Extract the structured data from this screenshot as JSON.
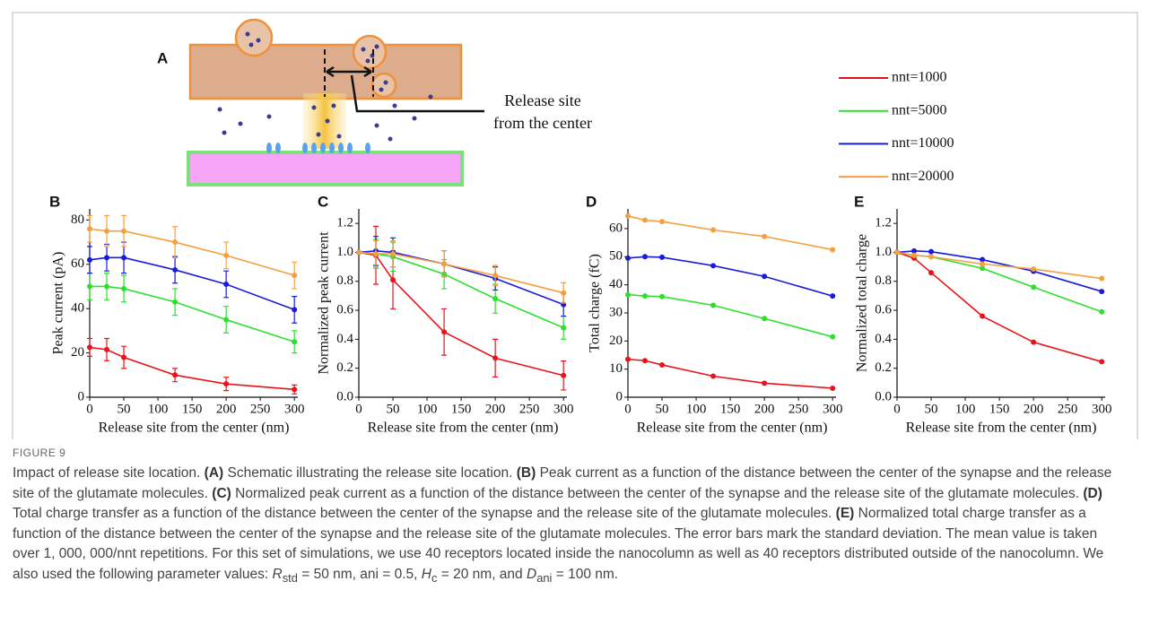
{
  "figure_label": "FIGURE 9",
  "schematic": {
    "panel": "A",
    "label_lines": [
      "Release site",
      "from the center"
    ]
  },
  "caption": {
    "parts": [
      "Impact of release site location. ",
      "(A)",
      " Schematic illustrating the release site location. ",
      "(B)",
      " Peak current as a function of the distance between the center of the synapse and the release site of the glutamate molecules. ",
      "(C)",
      " Normalized peak current as a function of the distance between the center of the synapse and the release site of the glutamate molecules. ",
      "(D)",
      " Total charge transfer as a function of the distance between the center of the synapse and the release site of the glutamate molecules. ",
      "(E)",
      " Normalized total charge transfer as a function of the distance between the center of the synapse and the release site of the glutamate molecules. The error bars mark the standard deviation. The mean value is taken over 1, 000, 000/nnt repetitions. For this set of simulations, we use 40 receptors located inside the nanocolumn as well as 40 receptors distributed outside of the nanocolumn. We also used the following parameter values: ",
      "R",
      "std",
      " = 50 nm, ani = 0.5, ",
      "H",
      "c",
      " = 20 nm, and ",
      "D",
      "ani",
      " = 100 nm."
    ]
  },
  "chart_data": [
    {
      "type": "line",
      "panel": "B",
      "ylabel": "Peak current (pA)",
      "xlabel": "Release site from the center (nm)",
      "x": [
        0,
        25,
        50,
        125,
        200,
        300
      ],
      "xlim": [
        0,
        305
      ],
      "xticks": [
        0,
        50,
        100,
        150,
        200,
        250,
        300
      ],
      "ylim": [
        0,
        85
      ],
      "yticks": [
        0,
        20,
        40,
        60,
        80
      ],
      "series": [
        {
          "name": "nnt=1000",
          "color": "#e8141b",
          "values": [
            22.5,
            21.5,
            18,
            10,
            6,
            3.5
          ],
          "errors": [
            4,
            5,
            5,
            3,
            3,
            2
          ]
        },
        {
          "name": "nnt=5000",
          "color": "#2ee02e",
          "values": [
            50,
            50,
            49,
            43,
            35,
            25
          ],
          "errors": [
            6,
            6,
            6,
            6,
            6,
            5
          ]
        },
        {
          "name": "nnt=10000",
          "color": "#1a1adb",
          "values": [
            62,
            63,
            63,
            57.5,
            51,
            39.5
          ],
          "errors": [
            6,
            6,
            7,
            6,
            6,
            6
          ]
        },
        {
          "name": "nnt=20000",
          "color": "#f5a040",
          "values": [
            76,
            75,
            75,
            70,
            64,
            55
          ],
          "errors": [
            6,
            7,
            7,
            7,
            6,
            6
          ]
        }
      ]
    },
    {
      "type": "line",
      "panel": "C",
      "ylabel": "Normalized peak current",
      "xlabel": "Release site from the center (nm)",
      "x": [
        0,
        25,
        50,
        125,
        200,
        300
      ],
      "xlim": [
        0,
        305
      ],
      "xticks": [
        0,
        50,
        100,
        150,
        200,
        250,
        300
      ],
      "ylim": [
        0,
        1.3
      ],
      "yticks": [
        {
          "value": 0,
          "label": "0.0"
        },
        {
          "value": 0.2,
          "label": "0.2"
        },
        {
          "value": 0.4,
          "label": "0.4"
        },
        {
          "value": 0.6,
          "label": "0.6"
        },
        {
          "value": 0.8,
          "label": "0.8"
        },
        {
          "value": 1,
          "label": "1.0"
        },
        {
          "value": 1.2,
          "label": "1.2"
        }
      ],
      "series": [
        {
          "color": "#e8141b",
          "values": [
            1,
            0.98,
            0.81,
            0.45,
            0.27,
            0.15
          ],
          "errors": [
            0,
            0.2,
            0.2,
            0.16,
            0.13,
            0.1
          ]
        },
        {
          "color": "#2ee02e",
          "values": [
            1,
            0.99,
            0.97,
            0.85,
            0.68,
            0.48
          ],
          "errors": [
            0,
            0.1,
            0.1,
            0.1,
            0.1,
            0.08
          ]
        },
        {
          "color": "#1a1adb",
          "values": [
            1,
            1.01,
            1,
            0.92,
            0.82,
            0.64
          ],
          "errors": [
            0,
            0.1,
            0.1,
            0.09,
            0.08,
            0.08
          ]
        },
        {
          "color": "#f5a040",
          "values": [
            1,
            0.99,
            0.99,
            0.92,
            0.84,
            0.72
          ],
          "errors": [
            0,
            0.09,
            0.09,
            0.09,
            0.07,
            0.07
          ]
        }
      ]
    },
    {
      "type": "line",
      "panel": "D",
      "ylabel": "Total charge (fC)",
      "xlabel": "Release site from the center (nm)",
      "x": [
        0,
        25,
        50,
        125,
        200,
        300
      ],
      "xlim": [
        0,
        305
      ],
      "xticks": [
        0,
        50,
        100,
        150,
        200,
        250,
        300
      ],
      "ylim": [
        0,
        67
      ],
      "yticks": [
        0,
        10,
        20,
        30,
        40,
        50,
        60
      ],
      "series": [
        {
          "color": "#e8141b",
          "values": [
            13.5,
            13,
            11.5,
            7.5,
            5,
            3.2
          ]
        },
        {
          "color": "#2ee02e",
          "values": [
            36.5,
            36,
            35.8,
            32.7,
            28,
            21.5
          ]
        },
        {
          "color": "#1a1adb",
          "values": [
            49.5,
            50,
            49.8,
            46.8,
            43,
            36
          ]
        },
        {
          "color": "#f5a040",
          "values": [
            64.5,
            63,
            62.5,
            59.5,
            57.2,
            52.5
          ]
        }
      ]
    },
    {
      "type": "line",
      "panel": "E",
      "ylabel": "Normalized total charge",
      "xlabel": "Release site from the center (nm)",
      "x": [
        0,
        25,
        50,
        125,
        200,
        300
      ],
      "xlim": [
        0,
        305
      ],
      "xticks": [
        0,
        50,
        100,
        150,
        200,
        250,
        300
      ],
      "ylim": [
        0,
        1.3
      ],
      "yticks": [
        {
          "value": 0,
          "label": "0.0"
        },
        {
          "value": 0.2,
          "label": "0.2"
        },
        {
          "value": 0.4,
          "label": "0.4"
        },
        {
          "value": 0.6,
          "label": "0.6"
        },
        {
          "value": 0.8,
          "label": "0.8"
        },
        {
          "value": 1,
          "label": "1.0"
        },
        {
          "value": 1.2,
          "label": "1.2"
        }
      ],
      "series": [
        {
          "color": "#e8141b",
          "values": [
            1,
            0.96,
            0.86,
            0.56,
            0.38,
            0.245
          ]
        },
        {
          "color": "#2ee02e",
          "values": [
            1,
            0.98,
            0.97,
            0.89,
            0.76,
            0.59
          ]
        },
        {
          "color": "#1a1adb",
          "values": [
            1,
            1.01,
            1.005,
            0.95,
            0.87,
            0.73
          ]
        },
        {
          "color": "#f5a040",
          "values": [
            1,
            0.98,
            0.97,
            0.92,
            0.885,
            0.82
          ]
        }
      ]
    }
  ]
}
